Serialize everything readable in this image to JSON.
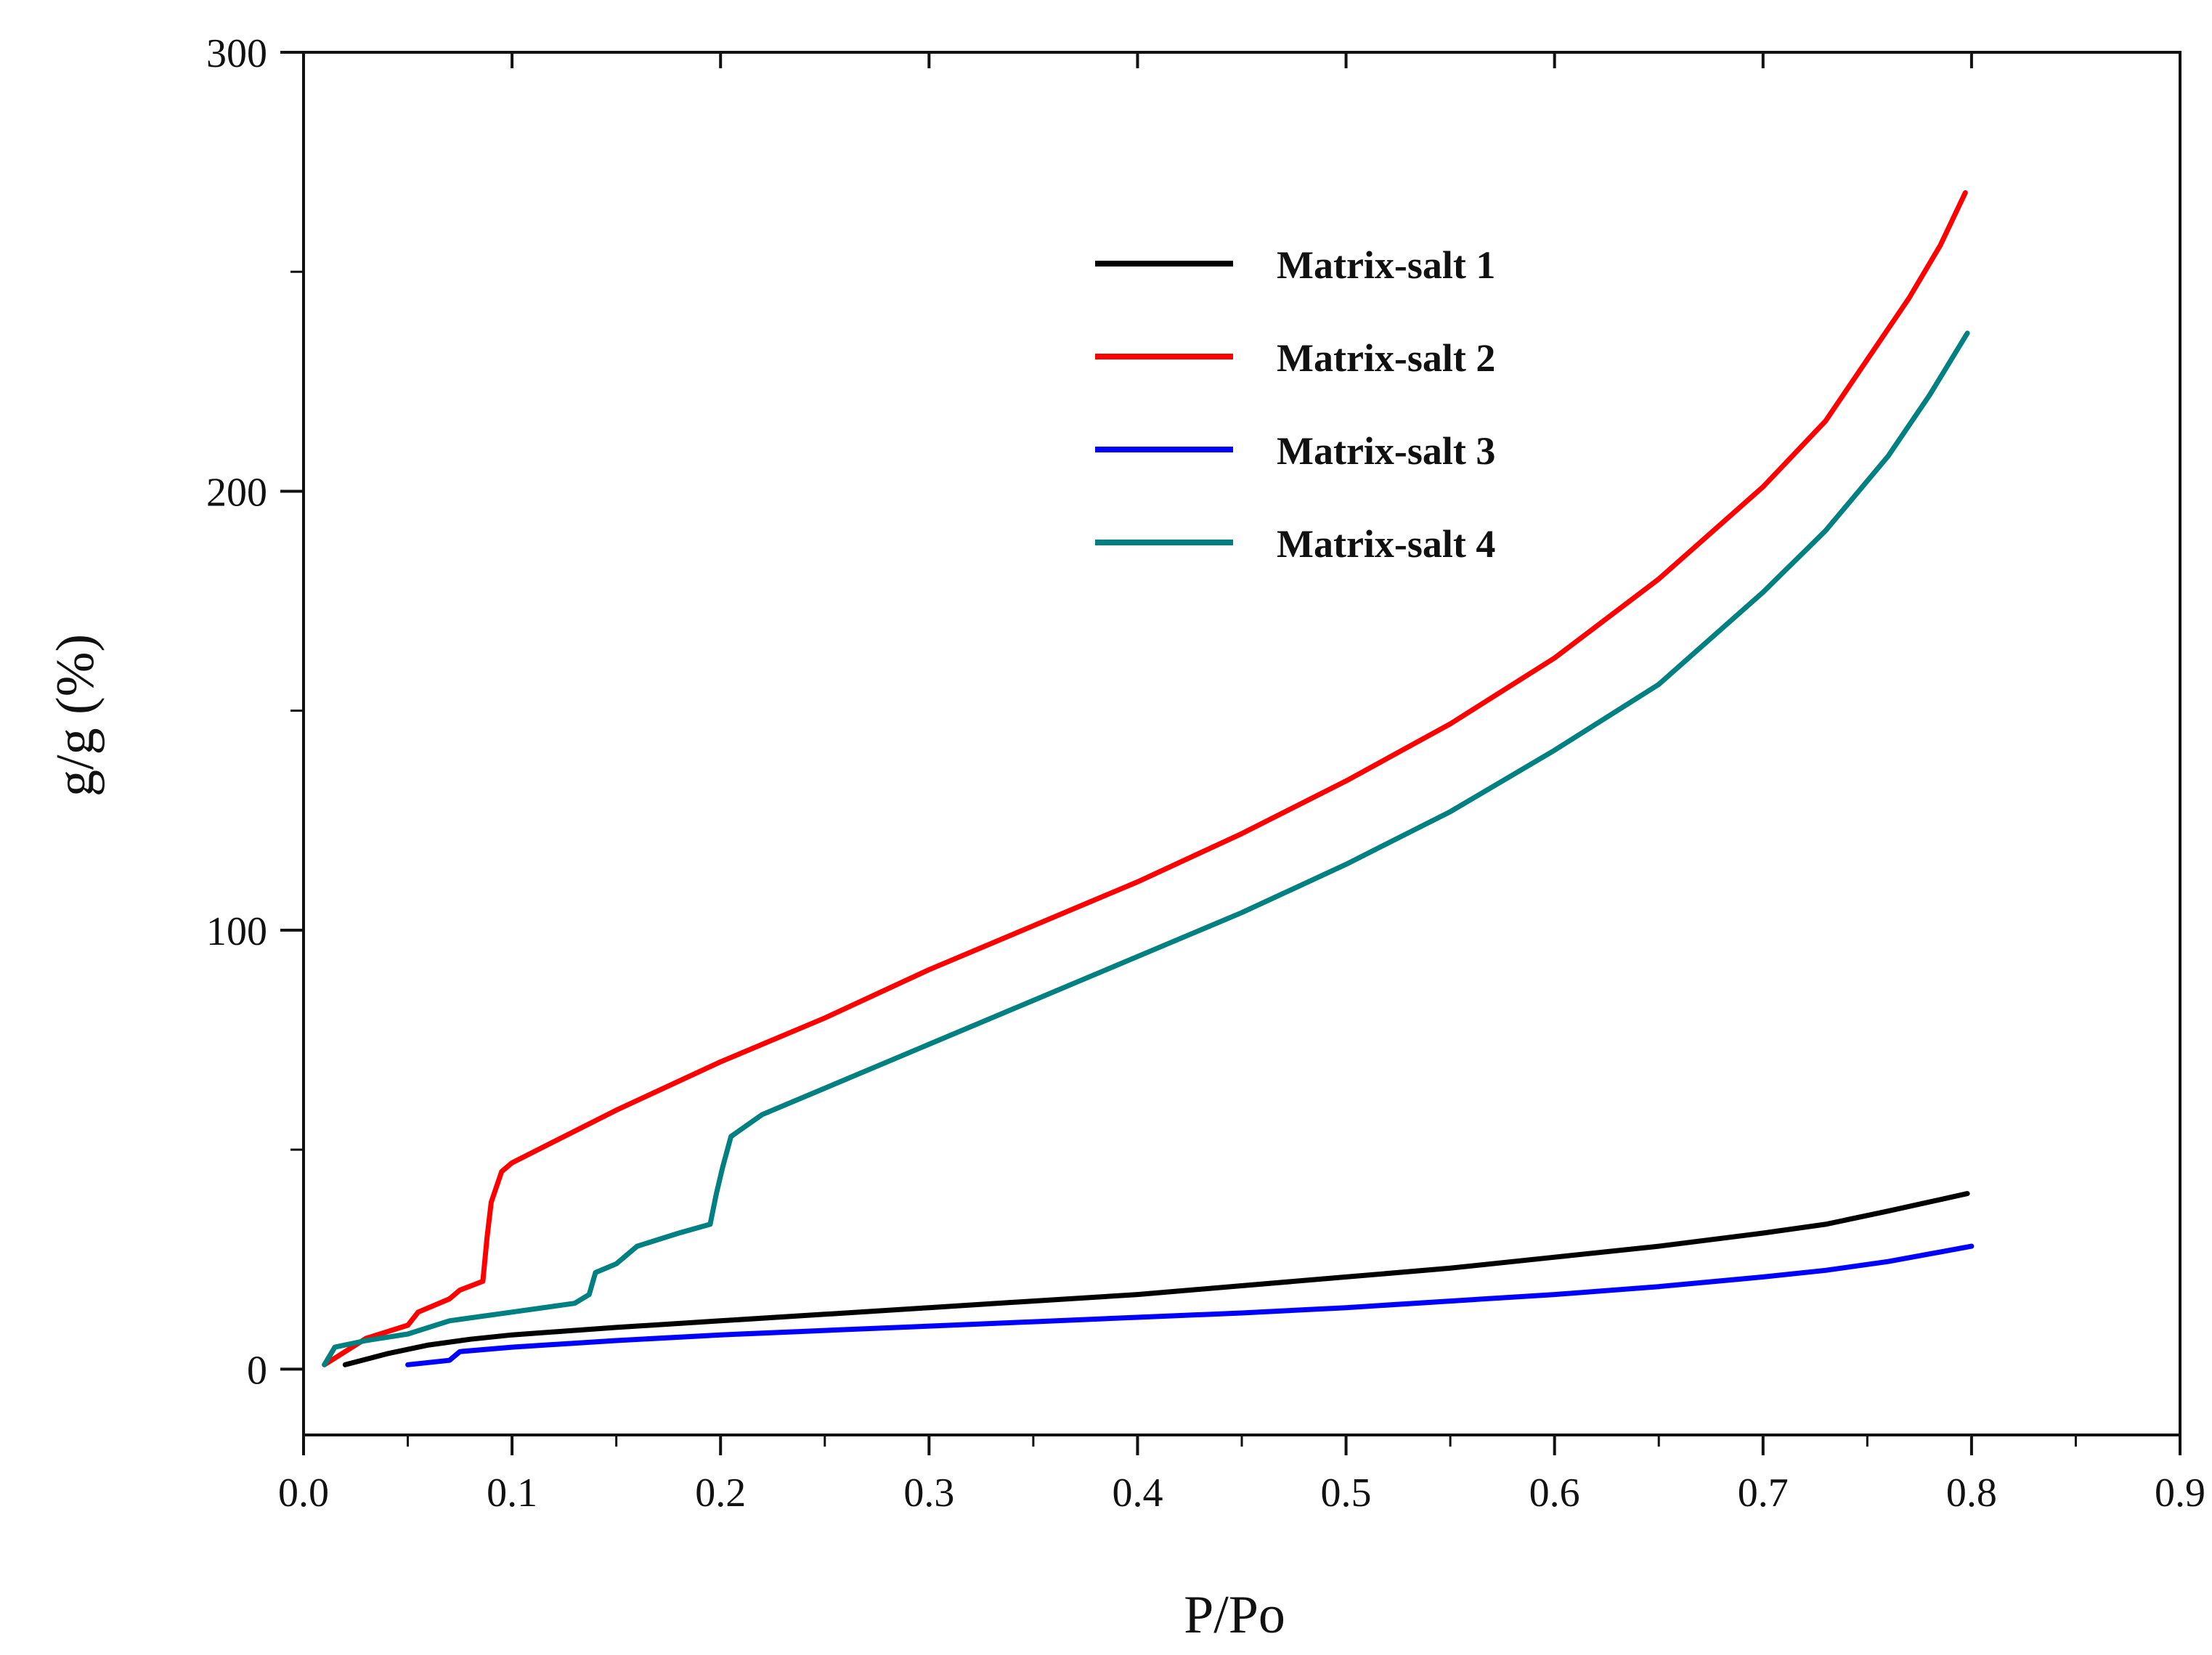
{
  "chart_data": {
    "type": "line",
    "title": "",
    "xlabel": "P/Po",
    "ylabel": "g/g (%)",
    "xlim": [
      0.0,
      0.9
    ],
    "ylim": [
      -15,
      300
    ],
    "x_ticks": [
      {
        "value": 0.0,
        "label": "0.0"
      },
      {
        "value": 0.1,
        "label": "0.1"
      },
      {
        "value": 0.2,
        "label": "0.2"
      },
      {
        "value": 0.3,
        "label": "0.3"
      },
      {
        "value": 0.4,
        "label": "0.4"
      },
      {
        "value": 0.5,
        "label": "0.5"
      },
      {
        "value": 0.6,
        "label": "0.6"
      },
      {
        "value": 0.7,
        "label": "0.7"
      },
      {
        "value": 0.8,
        "label": "0.8"
      },
      {
        "value": 0.9,
        "label": "0.9"
      }
    ],
    "y_ticks": [
      {
        "value": 0,
        "label": "0"
      },
      {
        "value": 100,
        "label": "100"
      },
      {
        "value": 200,
        "label": "200"
      },
      {
        "value": 300,
        "label": "300"
      }
    ],
    "grid": false,
    "legend_position": "top-right",
    "series": [
      {
        "name": "Matrix-salt 1",
        "color": "#000000",
        "points": [
          [
            0.02,
            1
          ],
          [
            0.04,
            3.5
          ],
          [
            0.06,
            5.5
          ],
          [
            0.08,
            6.8
          ],
          [
            0.1,
            7.8
          ],
          [
            0.15,
            9.5
          ],
          [
            0.2,
            11
          ],
          [
            0.25,
            12.5
          ],
          [
            0.3,
            14
          ],
          [
            0.35,
            15.5
          ],
          [
            0.4,
            17
          ],
          [
            0.45,
            19
          ],
          [
            0.5,
            21
          ],
          [
            0.55,
            23
          ],
          [
            0.6,
            25.5
          ],
          [
            0.65,
            28
          ],
          [
            0.7,
            31
          ],
          [
            0.73,
            33
          ],
          [
            0.76,
            36
          ],
          [
            0.798,
            40
          ]
        ]
      },
      {
        "name": "Matrix-salt 2",
        "color": "#ff0000",
        "points": [
          [
            0.01,
            1
          ],
          [
            0.02,
            4
          ],
          [
            0.03,
            7
          ],
          [
            0.05,
            10
          ],
          [
            0.055,
            13
          ],
          [
            0.07,
            16
          ],
          [
            0.075,
            18
          ],
          [
            0.086,
            20
          ],
          [
            0.088,
            30
          ],
          [
            0.09,
            38
          ],
          [
            0.095,
            45
          ],
          [
            0.1,
            47
          ],
          [
            0.15,
            59
          ],
          [
            0.2,
            70
          ],
          [
            0.25,
            80
          ],
          [
            0.3,
            91
          ],
          [
            0.35,
            101
          ],
          [
            0.4,
            111
          ],
          [
            0.45,
            122
          ],
          [
            0.5,
            134
          ],
          [
            0.55,
            147
          ],
          [
            0.6,
            162
          ],
          [
            0.65,
            180
          ],
          [
            0.7,
            201
          ],
          [
            0.73,
            216
          ],
          [
            0.75,
            230
          ],
          [
            0.77,
            244
          ],
          [
            0.785,
            256
          ],
          [
            0.797,
            268
          ]
        ]
      },
      {
        "name": "Matrix-salt 3",
        "color": "#0000ff",
        "points": [
          [
            0.05,
            1
          ],
          [
            0.07,
            2
          ],
          [
            0.075,
            4
          ],
          [
            0.1,
            5
          ],
          [
            0.15,
            6.5
          ],
          [
            0.2,
            7.8
          ],
          [
            0.25,
            8.8
          ],
          [
            0.3,
            9.8
          ],
          [
            0.35,
            10.8
          ],
          [
            0.4,
            11.8
          ],
          [
            0.45,
            12.8
          ],
          [
            0.5,
            14
          ],
          [
            0.55,
            15.5
          ],
          [
            0.6,
            17
          ],
          [
            0.65,
            18.8
          ],
          [
            0.7,
            21
          ],
          [
            0.73,
            22.5
          ],
          [
            0.76,
            24.5
          ],
          [
            0.8,
            28
          ]
        ]
      },
      {
        "name": "Matrix-salt 4",
        "color": "#008080",
        "points": [
          [
            0.01,
            1
          ],
          [
            0.015,
            5
          ],
          [
            0.03,
            6.5
          ],
          [
            0.05,
            8
          ],
          [
            0.07,
            11
          ],
          [
            0.1,
            13
          ],
          [
            0.13,
            15
          ],
          [
            0.137,
            17
          ],
          [
            0.14,
            22
          ],
          [
            0.15,
            24
          ],
          [
            0.16,
            28
          ],
          [
            0.18,
            31
          ],
          [
            0.195,
            33
          ],
          [
            0.198,
            40
          ],
          [
            0.201,
            46
          ],
          [
            0.205,
            53
          ],
          [
            0.22,
            58
          ],
          [
            0.25,
            64
          ],
          [
            0.3,
            74
          ],
          [
            0.35,
            84
          ],
          [
            0.4,
            94
          ],
          [
            0.45,
            104
          ],
          [
            0.5,
            115
          ],
          [
            0.55,
            127
          ],
          [
            0.6,
            141
          ],
          [
            0.65,
            156
          ],
          [
            0.7,
            177
          ],
          [
            0.73,
            191
          ],
          [
            0.76,
            208
          ],
          [
            0.78,
            222
          ],
          [
            0.798,
            236
          ]
        ]
      }
    ]
  }
}
